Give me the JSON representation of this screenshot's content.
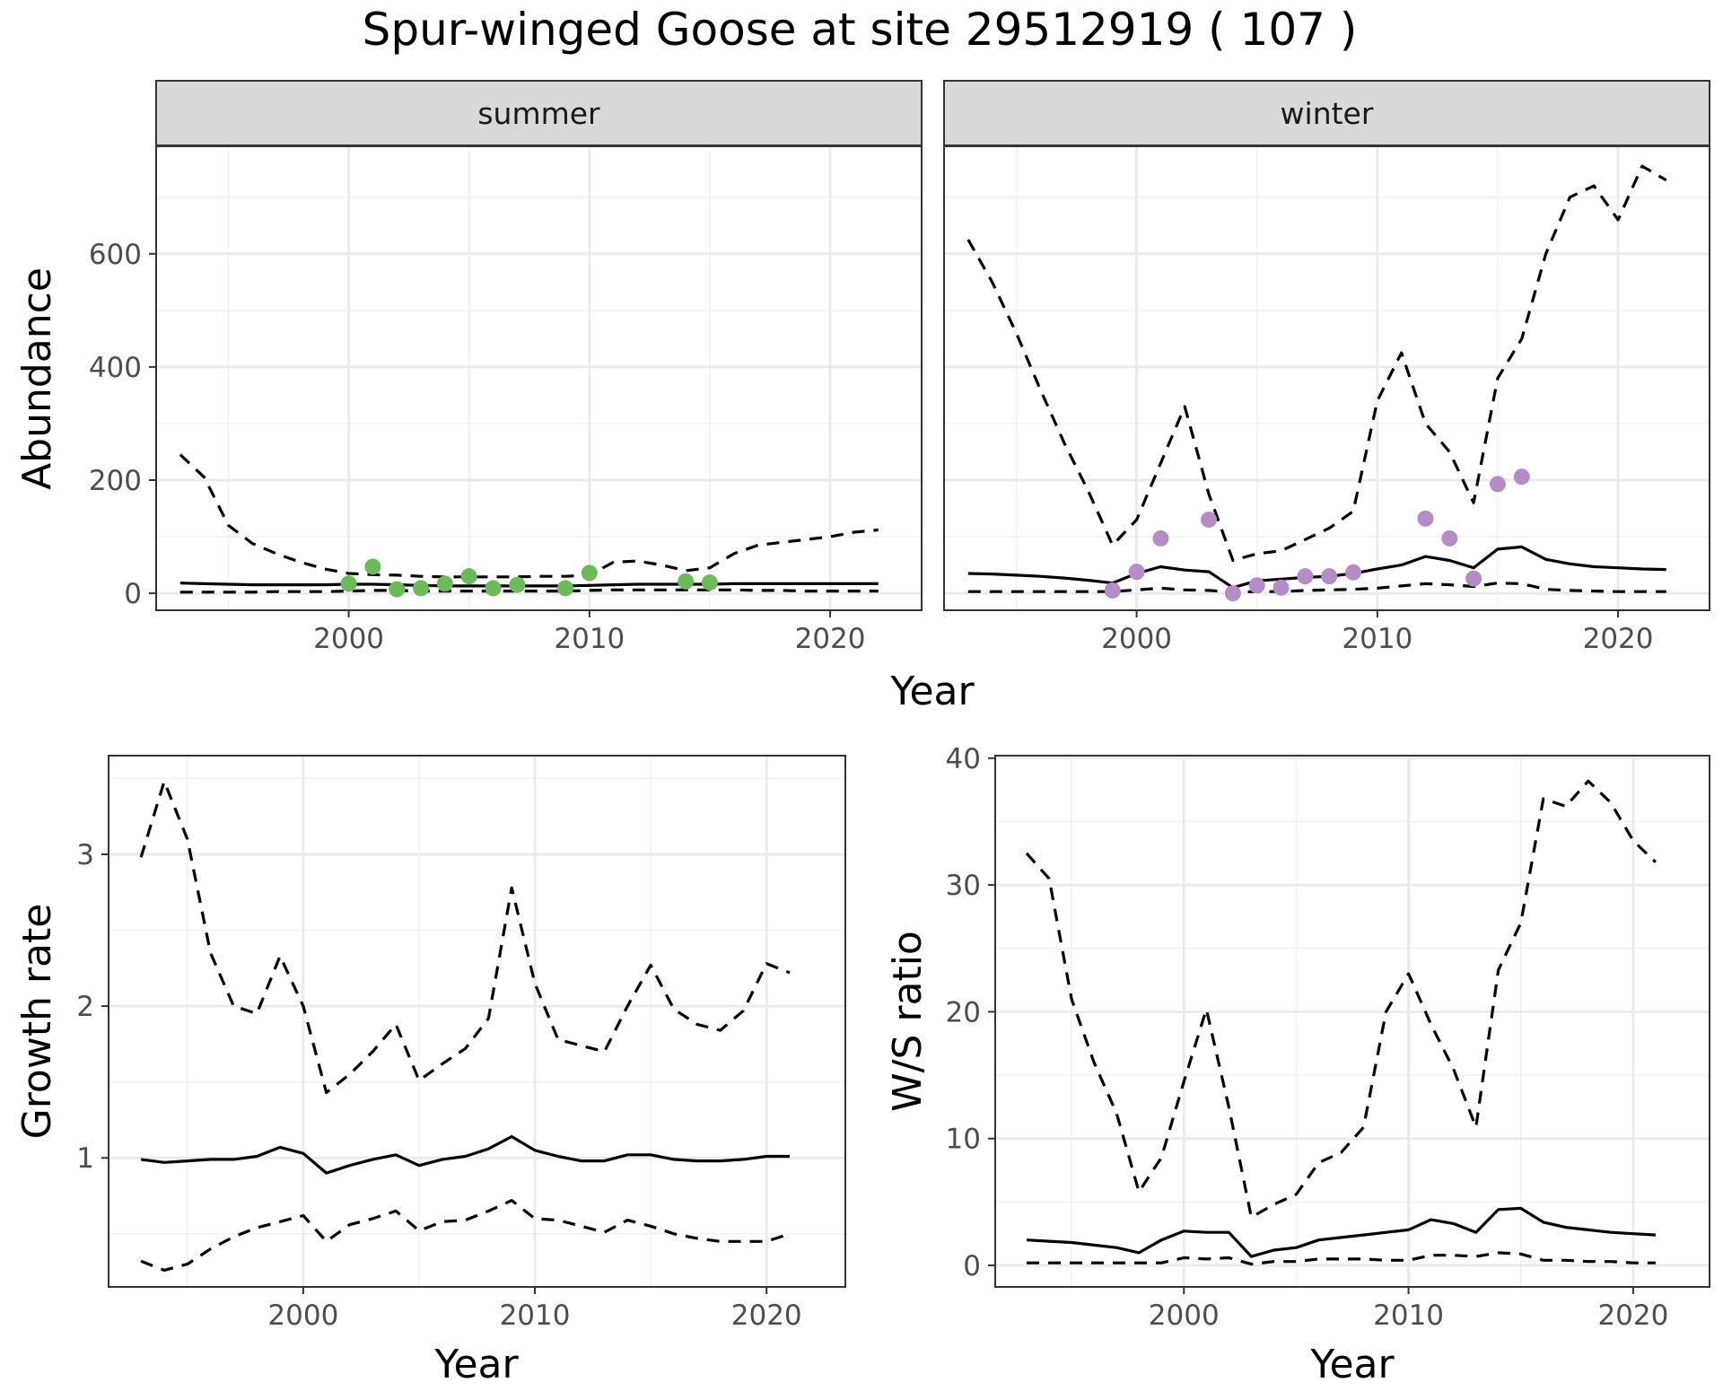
{
  "title": "Spur-winged Goose at site 29512919 ( 107 )",
  "colors": {
    "summer_points": "#6bbb5b",
    "winter_points": "#b48cc8",
    "lines": "#000000"
  },
  "chart_data": [
    {
      "id": "abundance",
      "type": "line",
      "facets": [
        "summer",
        "winter"
      ],
      "xlabel": "Year",
      "ylabel": "Abundance",
      "xlim": [
        1992,
        2023.8
      ],
      "ylim": [
        -30,
        790
      ],
      "x_ticks": [
        2000,
        2010,
        2020
      ],
      "y_ticks": [
        0,
        200,
        400,
        600
      ],
      "grid": true,
      "panels": [
        {
          "facet": "summer",
          "years": [
            1993,
            1994,
            1995,
            1996,
            1997,
            1998,
            1999,
            2000,
            2001,
            2002,
            2003,
            2004,
            2005,
            2006,
            2007,
            2008,
            2009,
            2010,
            2011,
            2012,
            2013,
            2014,
            2015,
            2016,
            2017,
            2018,
            2019,
            2020,
            2021,
            2022
          ],
          "series": [
            {
              "style": "solid",
              "values": [
                18,
                17,
                16,
                15,
                15,
                15,
                15,
                16,
                16,
                15,
                14,
                13,
                13,
                13,
                13,
                13,
                13,
                14,
                15,
                16,
                16,
                16,
                16,
                17,
                17,
                17,
                17,
                17,
                17,
                17
              ]
            },
            {
              "style": "dashed",
              "values": [
                245,
                205,
                120,
                88,
                70,
                55,
                43,
                35,
                33,
                32,
                30,
                29,
                29,
                29,
                29,
                30,
                30,
                32,
                55,
                57,
                50,
                40,
                45,
                70,
                85,
                90,
                95,
                100,
                108,
                112
              ]
            },
            {
              "style": "dashed",
              "values": [
                2,
                2,
                2,
                2,
                3,
                3,
                3,
                4,
                5,
                5,
                4,
                4,
                4,
                4,
                4,
                4,
                4,
                5,
                6,
                6,
                6,
                6,
                6,
                6,
                5,
                5,
                4,
                4,
                4,
                4
              ]
            }
          ],
          "points": {
            "x": [
              2000,
              2001,
              2002,
              2003,
              2004,
              2005,
              2006,
              2007,
              2009,
              2010,
              2014,
              2015
            ],
            "y": [
              17,
              47,
              7,
              9,
              17,
              30,
              9,
              15,
              9,
              36,
              21,
              19
            ]
          }
        },
        {
          "facet": "winter",
          "years": [
            1993,
            1994,
            1995,
            1996,
            1997,
            1998,
            1999,
            2000,
            2001,
            2002,
            2003,
            2004,
            2005,
            2006,
            2007,
            2008,
            2009,
            2010,
            2011,
            2012,
            2013,
            2014,
            2015,
            2016,
            2017,
            2018,
            2019,
            2020,
            2021,
            2022
          ],
          "series": [
            {
              "style": "solid",
              "values": [
                35,
                34,
                32,
                30,
                27,
                23,
                18,
                35,
                47,
                41,
                38,
                10,
                22,
                25,
                28,
                30,
                35,
                43,
                50,
                65,
                58,
                45,
                78,
                82,
                60,
                52,
                47,
                45,
                43,
                42
              ]
            },
            {
              "style": "dashed",
              "values": [
                625,
                550,
                460,
                360,
                265,
                180,
                85,
                130,
                230,
                330,
                175,
                58,
                70,
                75,
                95,
                115,
                145,
                340,
                425,
                300,
                250,
                160,
                380,
                450,
                600,
                700,
                720,
                660,
                755,
                730
              ]
            },
            {
              "style": "dashed",
              "values": [
                3,
                3,
                3,
                3,
                3,
                3,
                3,
                6,
                9,
                6,
                5,
                2,
                3,
                3,
                5,
                6,
                7,
                9,
                13,
                17,
                15,
                12,
                18,
                17,
                7,
                5,
                4,
                3,
                3,
                3
              ]
            }
          ],
          "points": {
            "x": [
              1999,
              2000,
              2001,
              2003,
              2004,
              2005,
              2006,
              2007,
              2008,
              2009,
              2012,
              2013,
              2014,
              2015,
              2016
            ],
            "y": [
              5,
              38,
              97,
              130,
              0,
              14,
              10,
              30,
              30,
              37,
              132,
              97,
              26,
              193,
              206
            ]
          }
        }
      ]
    },
    {
      "id": "growth",
      "type": "line",
      "xlabel": "Year",
      "ylabel": "Growth rate",
      "xlim": [
        1991.6,
        2023.4
      ],
      "ylim": [
        0.15,
        3.65
      ],
      "x_ticks": [
        2000,
        2010,
        2020
      ],
      "y_ticks": [
        1,
        2,
        3
      ],
      "grid": true,
      "years": [
        1993,
        1994,
        1995,
        1996,
        1997,
        1998,
        1999,
        2000,
        2001,
        2002,
        2003,
        2004,
        2005,
        2006,
        2007,
        2008,
        2009,
        2010,
        2011,
        2012,
        2013,
        2014,
        2015,
        2016,
        2017,
        2018,
        2019,
        2020,
        2021
      ],
      "series": [
        {
          "style": "solid",
          "values": [
            0.99,
            0.97,
            0.98,
            0.99,
            0.99,
            1.01,
            1.07,
            1.03,
            0.9,
            0.95,
            0.99,
            1.02,
            0.95,
            0.99,
            1.01,
            1.06,
            1.14,
            1.05,
            1.01,
            0.98,
            0.98,
            1.02,
            1.02,
            0.99,
            0.98,
            0.98,
            0.99,
            1.01,
            1.01
          ]
        },
        {
          "style": "dashed",
          "values": [
            2.98,
            3.48,
            3.1,
            2.35,
            2.0,
            1.95,
            2.33,
            2.0,
            1.43,
            1.55,
            1.7,
            1.88,
            1.51,
            1.62,
            1.72,
            1.92,
            2.78,
            2.15,
            1.78,
            1.74,
            1.7,
            2.0,
            2.27,
            1.98,
            1.88,
            1.84,
            1.97,
            2.28,
            2.22
          ]
        },
        {
          "style": "dashed",
          "values": [
            0.32,
            0.26,
            0.3,
            0.4,
            0.48,
            0.54,
            0.58,
            0.62,
            0.45,
            0.56,
            0.6,
            0.65,
            0.52,
            0.58,
            0.59,
            0.65,
            0.72,
            0.6,
            0.59,
            0.55,
            0.51,
            0.59,
            0.55,
            0.5,
            0.47,
            0.45,
            0.45,
            0.45,
            0.5
          ]
        }
      ]
    },
    {
      "id": "ws_ratio",
      "type": "line",
      "xlabel": "Year",
      "ylabel": "W/S ratio",
      "xlim": [
        1991.6,
        2023.4
      ],
      "ylim": [
        -1.7,
        40.2
      ],
      "x_ticks": [
        2000,
        2010,
        2020
      ],
      "y_ticks": [
        0,
        10,
        20,
        30,
        40
      ],
      "grid": true,
      "years": [
        1993,
        1994,
        1995,
        1996,
        1997,
        1998,
        1999,
        2000,
        2001,
        2002,
        2003,
        2004,
        2005,
        2006,
        2007,
        2008,
        2009,
        2010,
        2011,
        2012,
        2013,
        2014,
        2015,
        2016,
        2017,
        2018,
        2019,
        2020,
        2021
      ],
      "series": [
        {
          "style": "solid",
          "values": [
            2.0,
            1.9,
            1.8,
            1.6,
            1.4,
            1.0,
            2.0,
            2.7,
            2.6,
            2.6,
            0.7,
            1.2,
            1.4,
            2.0,
            2.2,
            2.4,
            2.6,
            2.8,
            3.6,
            3.3,
            2.6,
            4.4,
            4.5,
            3.4,
            3.0,
            2.8,
            2.6,
            2.5,
            2.4
          ]
        },
        {
          "style": "dashed",
          "values": [
            32.5,
            30.5,
            21.0,
            16.0,
            12.0,
            5.8,
            8.5,
            14.5,
            20.2,
            12.5,
            3.8,
            4.8,
            5.6,
            8.1,
            8.9,
            10.9,
            20.0,
            23.0,
            19.0,
            15.5,
            10.9,
            23.3,
            27.0,
            36.8,
            36.2,
            38.2,
            36.5,
            33.5,
            31.8
          ]
        },
        {
          "style": "dashed",
          "values": [
            0.2,
            0.2,
            0.2,
            0.2,
            0.2,
            0.2,
            0.2,
            0.6,
            0.5,
            0.6,
            0.1,
            0.3,
            0.3,
            0.5,
            0.5,
            0.5,
            0.4,
            0.4,
            0.8,
            0.8,
            0.7,
            1.0,
            0.9,
            0.4,
            0.4,
            0.3,
            0.3,
            0.2,
            0.2
          ]
        }
      ]
    }
  ]
}
